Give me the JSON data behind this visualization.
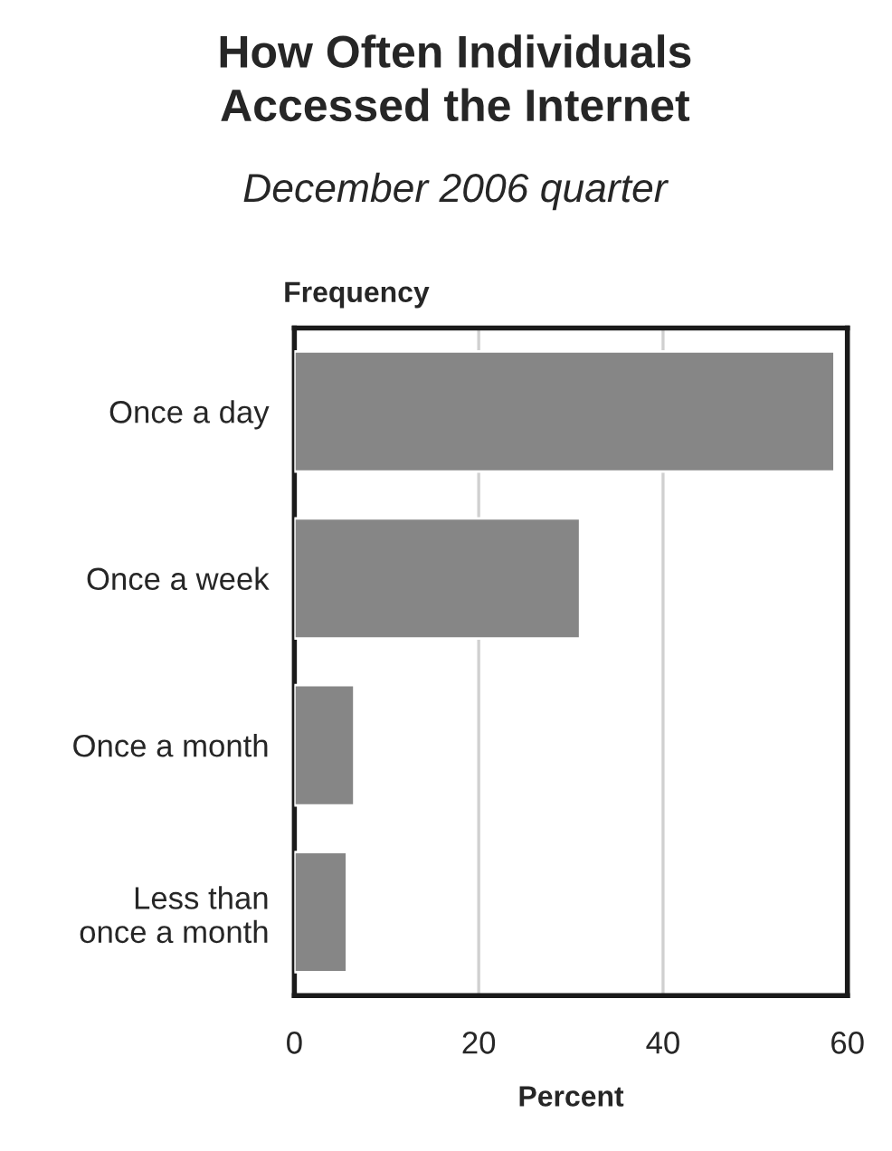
{
  "chart_data": {
    "type": "bar",
    "orientation": "horizontal",
    "title": "How Often Individuals\nAccessed the Internet",
    "subtitle": "December 2006 quarter",
    "ylabel": "Frequency",
    "xlabel": "Percent",
    "categories": [
      "Once a day",
      "Once a week",
      "Once a month",
      "Less than\nonce a month"
    ],
    "values": [
      58.6,
      31.0,
      6.5,
      5.7
    ],
    "color": "#868686",
    "xlim": [
      0,
      60
    ],
    "xticks": [
      0,
      20,
      40,
      60
    ],
    "grid": "x",
    "legend": false
  }
}
